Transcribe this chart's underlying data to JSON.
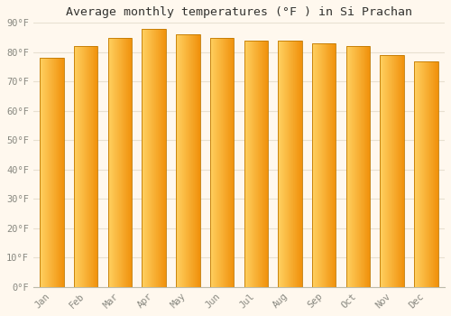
{
  "title": "Average monthly temperatures (°F ) in Si Prachan",
  "months": [
    "Jan",
    "Feb",
    "Mar",
    "Apr",
    "May",
    "Jun",
    "Jul",
    "Aug",
    "Sep",
    "Oct",
    "Nov",
    "Dec"
  ],
  "values": [
    78,
    82,
    85,
    88,
    86,
    85,
    84,
    84,
    83,
    82,
    79,
    77
  ],
  "ylim": [
    0,
    90
  ],
  "yticks": [
    0,
    10,
    20,
    30,
    40,
    50,
    60,
    70,
    80,
    90
  ],
  "ytick_labels": [
    "0°F",
    "10°F",
    "20°F",
    "30°F",
    "40°F",
    "50°F",
    "60°F",
    "70°F",
    "80°F",
    "90°F"
  ],
  "bar_color_left": "#FFD060",
  "bar_color_right": "#F0900A",
  "bar_edge_color": "#C07800",
  "background_color": "#FFF8EE",
  "grid_color": "#E8E0D0",
  "title_fontsize": 9.5,
  "tick_fontsize": 7.5,
  "bar_width": 0.7
}
